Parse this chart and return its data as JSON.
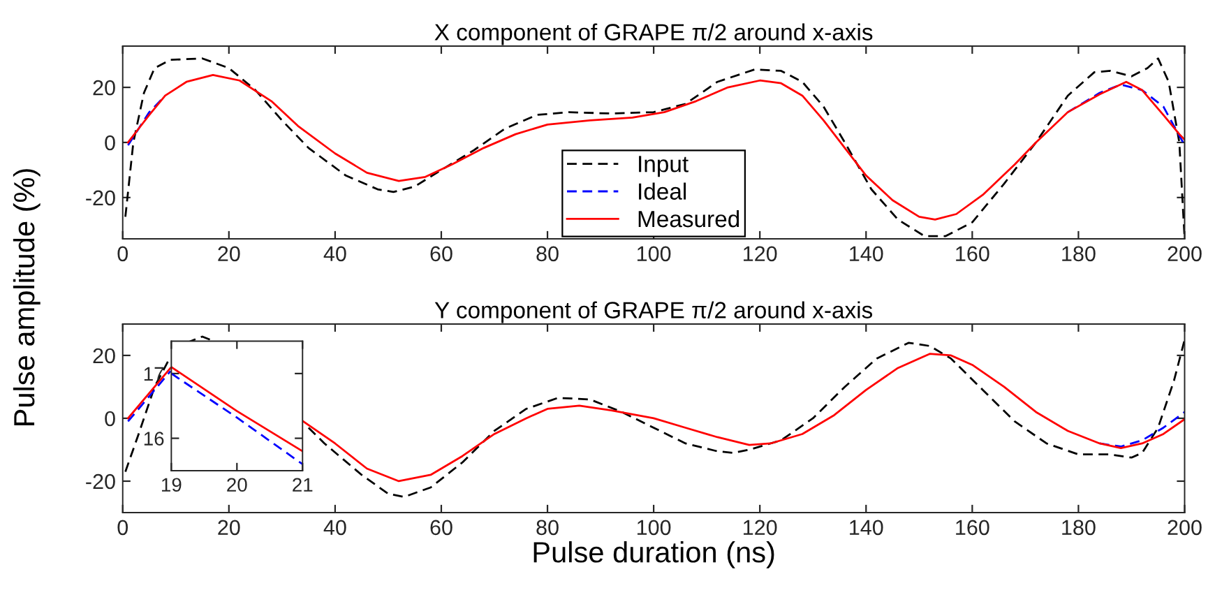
{
  "chart_data": [
    {
      "type": "line",
      "title": "X component of GRAPE π/2 around x-axis",
      "ylabel": "Pulse amplitude (%)",
      "xlim": [
        0,
        200
      ],
      "xticks": [
        0,
        20,
        40,
        60,
        80,
        100,
        120,
        140,
        160,
        180,
        200
      ],
      "ylim": [
        -35,
        35
      ],
      "yticks": [
        -20,
        0,
        20
      ],
      "grid": false,
      "legend": "bottom",
      "series": [
        {
          "name": "Input",
          "color": "#000000",
          "line_style": "dashed",
          "x": [
            0.5,
            2,
            4,
            6,
            9,
            15,
            20,
            25,
            30,
            35,
            42,
            48,
            51,
            55,
            60,
            66,
            72,
            78,
            84,
            92,
            100,
            106,
            112,
            119,
            124,
            128,
            132,
            136,
            141,
            146,
            151,
            155,
            160,
            166,
            172,
            178,
            183,
            186,
            190,
            193,
            195,
            197,
            199,
            200
          ],
          "values": [
            -27,
            0,
            18,
            27,
            30,
            30.5,
            27,
            19,
            8,
            -2,
            -12,
            -17,
            -18,
            -16,
            -10,
            -3,
            5,
            10,
            11,
            10.5,
            11,
            14,
            22,
            26.5,
            26,
            22,
            13,
            0,
            -17,
            -28,
            -34,
            -34,
            -29,
            -15,
            0,
            17,
            25.5,
            26,
            24,
            27,
            30.5,
            22,
            0,
            -35
          ]
        },
        {
          "name": "Ideal",
          "color": "#0000ff",
          "line_style": "dashed",
          "x": [
            1,
            3,
            5,
            8,
            12,
            17,
            22,
            28,
            33,
            40,
            46,
            52,
            57,
            62,
            68,
            74,
            80,
            88,
            96,
            102,
            108,
            114,
            120,
            124,
            128,
            132,
            136,
            140,
            145,
            150,
            153,
            157,
            162,
            168,
            172,
            178,
            184,
            188,
            192,
            196,
            198,
            200
          ],
          "values": [
            -1,
            5,
            11,
            17,
            null,
            null,
            null,
            null,
            null,
            null,
            null,
            null,
            null,
            null,
            null,
            null,
            null,
            null,
            null,
            null,
            null,
            null,
            null,
            null,
            null,
            null,
            null,
            null,
            null,
            null,
            null,
            null,
            null,
            null,
            null,
            11,
            18,
            21,
            19,
            13,
            6,
            -1
          ]
        },
        {
          "name": "Measured",
          "color": "#ff0000",
          "line_style": "solid",
          "x": [
            1,
            3,
            5,
            8,
            12,
            17,
            22,
            28,
            33,
            40,
            46,
            52,
            57,
            62,
            68,
            74,
            80,
            88,
            96,
            102,
            108,
            114,
            120,
            124,
            128,
            132,
            136,
            140,
            145,
            150,
            153,
            157,
            162,
            168,
            172,
            178,
            184,
            189,
            192,
            196,
            199,
            200
          ],
          "values": [
            0,
            5,
            10,
            17,
            22,
            24.5,
            22.5,
            15,
            6,
            -4,
            -11,
            -14,
            -12.5,
            -8,
            -2,
            3,
            6.5,
            8,
            9,
            11,
            15,
            20,
            22.5,
            21.5,
            17,
            8,
            -2,
            -12,
            -21,
            -27,
            -28,
            -26,
            -19,
            -8,
            0,
            11,
            17.5,
            22,
            19,
            10,
            3,
            1
          ]
        }
      ]
    },
    {
      "type": "line",
      "title": "Y component of GRAPE π/2 around x-axis",
      "xlabel": "Pulse duration (ns)",
      "xlim": [
        0,
        200
      ],
      "xticks": [
        0,
        20,
        40,
        60,
        80,
        100,
        120,
        140,
        160,
        180,
        200
      ],
      "ylim": [
        -30,
        30
      ],
      "yticks": [
        -20,
        0,
        20
      ],
      "grid": false,
      "series": [
        {
          "color": "#000000",
          "line_style": "dashed",
          "x": [
            0.5,
            3,
            6,
            8.5,
            10,
            12,
            15,
            18,
            20,
            35,
            38,
            45,
            50,
            53,
            58,
            64,
            70,
            76,
            82,
            88,
            94,
            100,
            106,
            112,
            115,
            118,
            124,
            130,
            136,
            142,
            148,
            152,
            156,
            162,
            168,
            174,
            180,
            186,
            190,
            192,
            195,
            198,
            200
          ],
          "values": [
            -17,
            -5,
            10,
            18,
            null,
            24,
            26,
            24,
            null,
            -3,
            -8,
            -18,
            -24,
            -25,
            -22,
            -14,
            -4,
            3,
            6.5,
            6,
            2,
            -3,
            -8,
            -10.5,
            -11,
            -10,
            -7,
            0,
            10,
            19,
            24,
            23,
            19,
            9,
            -1,
            -8,
            -11.5,
            -11.5,
            -12.5,
            -11,
            -3,
            12,
            25
          ]
        },
        {
          "color": "#0000ff",
          "line_style": "dashed",
          "x": [
            1,
            5,
            9,
            20,
            34,
            40,
            46,
            52,
            58,
            64,
            70,
            76,
            80,
            86,
            92,
            100,
            106,
            112,
            118,
            122,
            128,
            134,
            140,
            146,
            152,
            156,
            160,
            166,
            172,
            178,
            184,
            188,
            192,
            196,
            200
          ],
          "values": [
            -1,
            7,
            15,
            null,
            null,
            null,
            null,
            null,
            null,
            null,
            null,
            null,
            null,
            null,
            null,
            null,
            null,
            null,
            null,
            null,
            null,
            null,
            null,
            null,
            null,
            null,
            null,
            null,
            null,
            null,
            -8,
            -9,
            -7,
            -3,
            2
          ]
        },
        {
          "color": "#ff0000",
          "line_style": "solid",
          "x": [
            1,
            5,
            9,
            20,
            34,
            40,
            46,
            52,
            58,
            64,
            70,
            76,
            80,
            86,
            92,
            100,
            106,
            112,
            118,
            122,
            128,
            134,
            140,
            146,
            152,
            156,
            160,
            166,
            172,
            178,
            184,
            188,
            192,
            196,
            200
          ],
          "values": [
            0,
            8,
            16,
            null,
            -1,
            -8,
            -16,
            -20,
            -18,
            -12,
            -5,
            0,
            3,
            4,
            2.5,
            0,
            -3,
            -6,
            -8.5,
            -8,
            -5,
            1,
            9,
            16,
            20.5,
            20,
            17,
            10,
            2,
            -4,
            -8,
            -9.5,
            -8,
            -5,
            -0.3
          ]
        }
      ]
    },
    {
      "type": "line",
      "xlim": [
        19,
        21
      ],
      "xticks": [
        19,
        20,
        21
      ],
      "ylim": [
        15.5,
        17.5
      ],
      "yticks": [
        16,
        17
      ],
      "grid": false,
      "series": [
        {
          "color": "#0000ff",
          "line_style": "dashed",
          "x": [
            19,
            20,
            21
          ],
          "values": [
            17.0,
            16.32,
            15.6
          ]
        },
        {
          "color": "#ff0000",
          "line_style": "solid",
          "x": [
            19,
            20,
            21
          ],
          "values": [
            17.1,
            16.42,
            15.8
          ]
        }
      ]
    }
  ]
}
